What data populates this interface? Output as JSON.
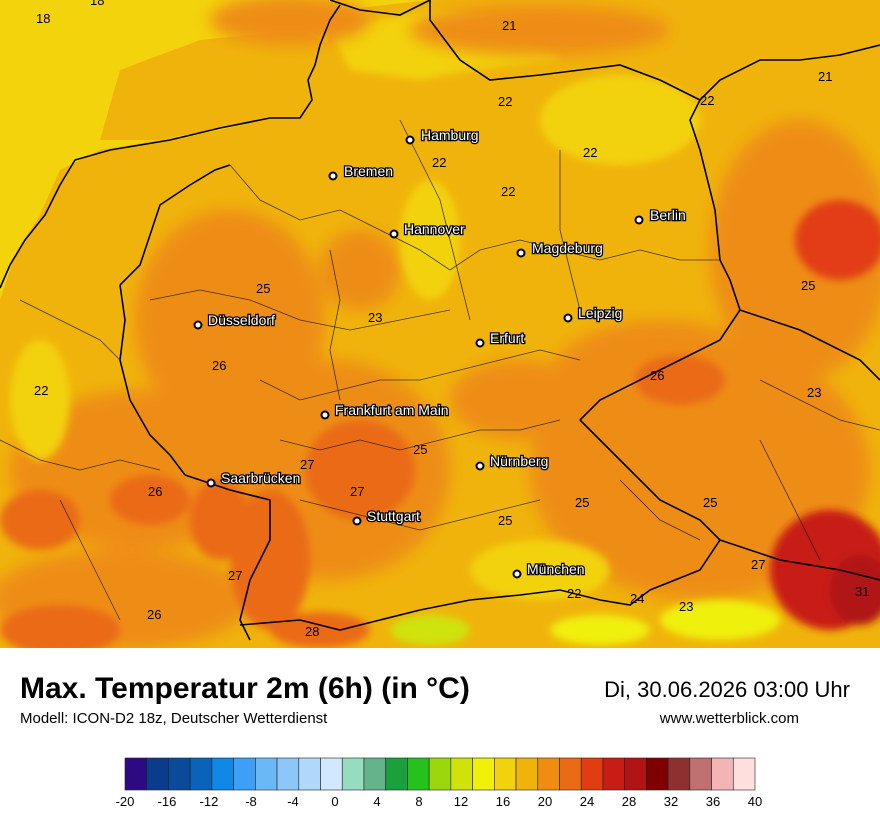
{
  "title": "Max. Temperatur 2m (6h) (in °C)",
  "subtitle": "Modell: ICON-D2 18z, Deutscher Wetterdienst",
  "datetime": "Di, 30.06.2026 03:00 Uhr",
  "website": "www.wetterblick.com",
  "cities": [
    {
      "name": "Hamburg",
      "id": "hamburg"
    },
    {
      "name": "Bremen",
      "id": "bremen"
    },
    {
      "name": "Hannover",
      "id": "hannover"
    },
    {
      "name": "Berlin",
      "id": "berlin"
    },
    {
      "name": "Magdeburg",
      "id": "magdeburg"
    },
    {
      "name": "Düsseldorf",
      "id": "duesseldorf"
    },
    {
      "name": "Leipzig",
      "id": "leipzig"
    },
    {
      "name": "Erfurt",
      "id": "erfurt"
    },
    {
      "name": "Frankfurt am Main",
      "id": "frankfurt"
    },
    {
      "name": "Nürnberg",
      "id": "nuernberg"
    },
    {
      "name": "Saarbrücken",
      "id": "saarbruecken"
    },
    {
      "name": "Stuttgart",
      "id": "stuttgart"
    },
    {
      "name": "München",
      "id": "muenchen"
    }
  ],
  "temperature_labels": [
    "18",
    "18",
    "21",
    "21",
    "22",
    "22",
    "22",
    "22",
    "22",
    "25",
    "23",
    "25",
    "26",
    "26",
    "22",
    "23",
    "25",
    "27",
    "26",
    "27",
    "25",
    "25",
    "25",
    "27",
    "27",
    "26",
    "28",
    "22",
    "24",
    "23",
    "31"
  ],
  "legend": {
    "ticks": [
      "-20",
      "-16",
      "-12",
      "-8",
      "-4",
      "0",
      "4",
      "8",
      "12",
      "16",
      "20",
      "24",
      "28",
      "32",
      "36",
      "40"
    ],
    "colors": [
      "#2e0a82",
      "#0a3c8c",
      "#0b4a99",
      "#0b62b9",
      "#1187e6",
      "#3ea0f5",
      "#6bb8f7",
      "#8cc7f8",
      "#b0d8fa",
      "#d2e8fc",
      "#96dcbe",
      "#64b38a",
      "#1aa03c",
      "#27c11d",
      "#9ad80c",
      "#cfe30a",
      "#f0f008",
      "#f2d20c",
      "#f0b30c",
      "#ee8d12",
      "#ea6a16",
      "#e23c12",
      "#c81c16",
      "#b01414",
      "#7e0000",
      "#8e3030",
      "#c07070",
      "#f2b4b4",
      "#ffdede"
    ]
  },
  "colors": {
    "sea": "#f2d30c",
    "warm_base": "#f0b30c",
    "orange": "#ee8d12",
    "dark_orange": "#ea6a16",
    "red": "#e23c12",
    "border": "#000000"
  }
}
